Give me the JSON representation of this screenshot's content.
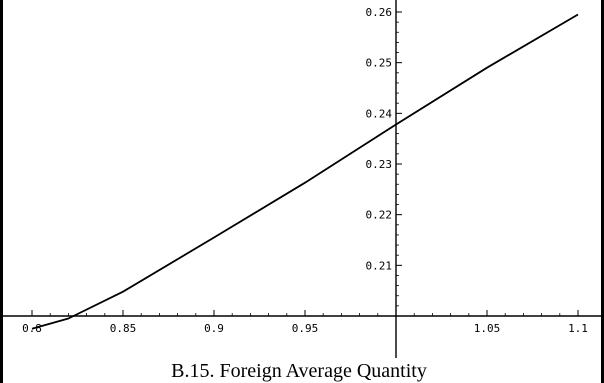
{
  "chart_data": {
    "type": "line",
    "title": "",
    "xlabel": "",
    "ylabel": "",
    "caption": "B.15. Foreign Average Quantity",
    "xlim": [
      0.8,
      1.1
    ],
    "ylim": [
      0.2,
      0.26
    ],
    "x_axis_crossing_y": 0.2,
    "y_axis_crossing_x": 1.0,
    "x_ticks": [
      0.8,
      0.85,
      0.9,
      0.95,
      1.05,
      1.1
    ],
    "x_tick_labels": [
      "0.8",
      "0.85",
      "0.9",
      "0.95",
      "1.05",
      "1.1"
    ],
    "y_ticks": [
      0.21,
      0.22,
      0.23,
      0.24,
      0.25,
      0.26
    ],
    "y_tick_labels": [
      "0.21",
      "0.22",
      "0.23",
      "0.24",
      "0.25",
      "0.26"
    ],
    "grid": false,
    "series": [
      {
        "values": [
          {
            "x": 0.8,
            "y": 0.1975
          },
          {
            "x": 0.82,
            "y": 0.1995
          },
          {
            "x": 0.85,
            "y": 0.2048
          },
          {
            "x": 0.9,
            "y": 0.2155
          },
          {
            "x": 0.95,
            "y": 0.2263
          },
          {
            "x": 1.0,
            "y": 0.2378
          },
          {
            "x": 1.05,
            "y": 0.249
          },
          {
            "x": 1.1,
            "y": 0.2595
          }
        ]
      }
    ]
  }
}
